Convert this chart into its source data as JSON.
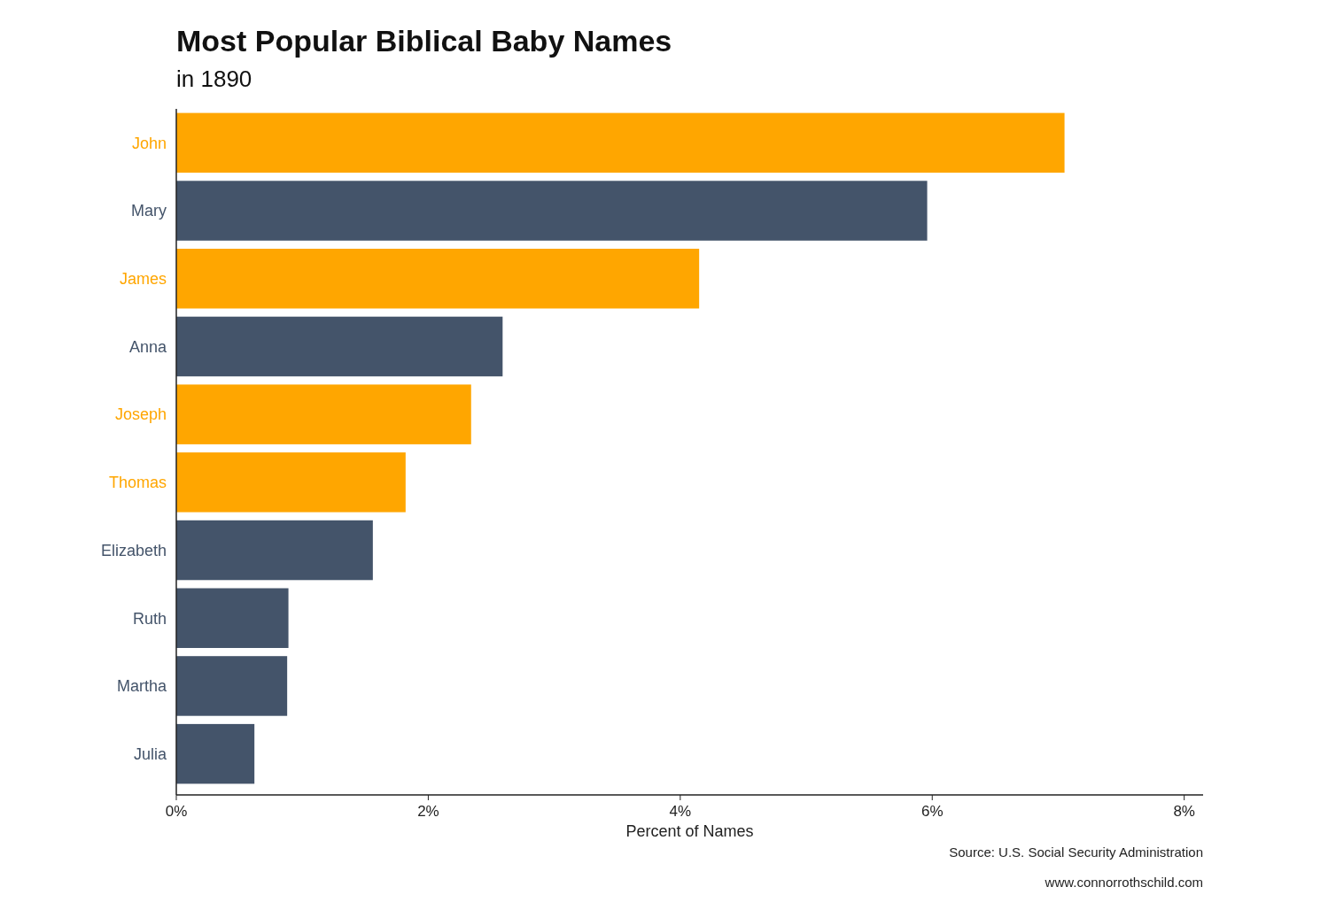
{
  "chart_data": {
    "type": "bar",
    "orientation": "horizontal",
    "title": "Most Popular Biblical Baby Names",
    "subtitle": "in 1890",
    "xlabel": "Percent of Names",
    "categories": [
      "John",
      "Mary",
      "James",
      "Anna",
      "Joseph",
      "Thomas",
      "Elizabeth",
      "Ruth",
      "Martha",
      "Julia"
    ],
    "values": [
      7.05,
      5.96,
      4.15,
      2.59,
      2.34,
      1.82,
      1.56,
      0.89,
      0.88,
      0.62
    ],
    "colors": [
      "#ffa600",
      "#44546a",
      "#ffa600",
      "#44546a",
      "#ffa600",
      "#ffa600",
      "#44546a",
      "#44546a",
      "#44546a",
      "#44546a"
    ],
    "xlim": [
      0,
      8.15
    ],
    "xticks": [
      {
        "value": 0,
        "label": "0%"
      },
      {
        "value": 2,
        "label": "2%"
      },
      {
        "value": 4,
        "label": "4%"
      },
      {
        "value": 6,
        "label": "6%"
      },
      {
        "value": 8,
        "label": "8%"
      }
    ],
    "annotations": [
      "Source: U.S. Social Security Administration",
      "www.connorrothschild.com"
    ]
  }
}
